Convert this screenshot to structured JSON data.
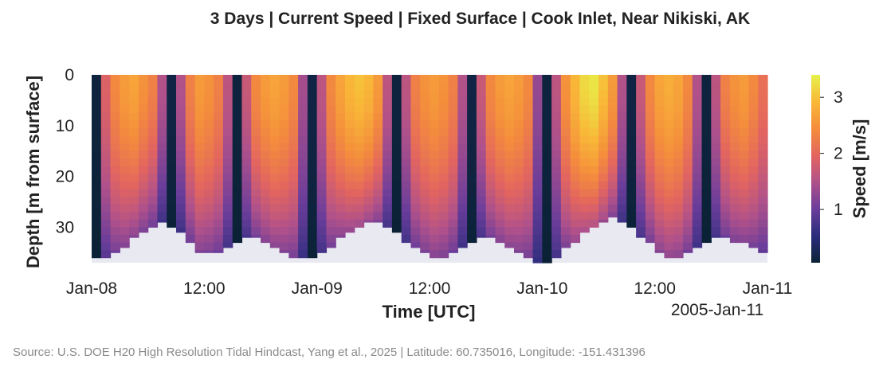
{
  "title": "3 Days | Current Speed | Fixed Surface | Cook Inlet, Near Nikiski, AK",
  "source": "Source: U.S. DOE H20 High Resolution Tidal Hindcast, Yang et al., 2025  |  Latitude: 60.735016, Longitude: -151.431396",
  "colors": {
    "background_area": "#e9e9f2",
    "colormap": [
      "#0b2236",
      "#2a2d7c",
      "#6a3d9a",
      "#b0518a",
      "#e3655f",
      "#f48d3c",
      "#f9b838",
      "#e6f24a"
    ]
  },
  "chart_data": {
    "type": "heatmap",
    "title": "3 Days | Current Speed | Fixed Surface | Cook Inlet, Near Nikiski, AK",
    "xlabel": "Time [UTC]",
    "ylabel": "Depth [m from surface]",
    "colorbar_label": "Speed [m/s]",
    "x_ticks": [
      "Jan-08",
      "12:00",
      "Jan-09",
      "12:00",
      "Jan-10",
      "12:00",
      "Jan-11"
    ],
    "x_offset_label": "2005-Jan-11",
    "y_ticks": [
      "0",
      "10",
      "20",
      "30"
    ],
    "y_tick_values": [
      0,
      10,
      20,
      30
    ],
    "ylim": [
      0,
      37
    ],
    "y_inverted": true,
    "colorbar_ticks": [
      "1",
      "2",
      "3"
    ],
    "colorbar_tick_values": [
      1,
      2,
      3
    ],
    "colorbar_range": [
      0.05,
      3.4
    ],
    "time_hours": [
      0,
      1,
      2,
      3,
      4,
      5,
      6,
      7,
      8,
      9,
      10,
      11,
      12,
      13,
      14,
      15,
      16,
      17,
      18,
      19,
      20,
      21,
      22,
      23,
      24,
      25,
      26,
      27,
      28,
      29,
      30,
      31,
      32,
      33,
      34,
      35,
      36,
      37,
      38,
      39,
      40,
      41,
      42,
      43,
      44,
      45,
      46,
      47,
      48,
      49,
      50,
      51,
      52,
      53,
      54,
      55,
      56,
      57,
      58,
      59,
      60,
      61,
      62,
      63,
      64,
      65,
      66,
      67,
      68,
      69,
      70,
      71
    ],
    "surface_speed_m_s": [
      0.1,
      1.9,
      2.4,
      2.6,
      2.7,
      2.5,
      2.3,
      1.5,
      0.15,
      1.5,
      2.3,
      2.6,
      2.5,
      2.3,
      1.6,
      0.1,
      1.7,
      2.4,
      2.6,
      2.7,
      2.6,
      2.4,
      1.4,
      0.15,
      1.6,
      2.4,
      2.7,
      2.9,
      3.0,
      2.9,
      2.6,
      1.6,
      0.1,
      1.6,
      2.3,
      2.5,
      2.6,
      2.5,
      2.3,
      1.5,
      0.15,
      1.7,
      2.4,
      2.6,
      2.7,
      2.6,
      2.4,
      1.3,
      0.1,
      1.6,
      2.5,
      2.9,
      3.2,
      3.3,
      3.0,
      2.6,
      1.5,
      0.15,
      1.7,
      2.4,
      2.7,
      2.8,
      2.7,
      2.4,
      1.5,
      0.1,
      1.6,
      2.3,
      2.5,
      2.6,
      2.4,
      2.1
    ],
    "bottom_depth_m": [
      36,
      36,
      35,
      34,
      32,
      31,
      30,
      29,
      30,
      31,
      33,
      35,
      35,
      35,
      34,
      33,
      32,
      32,
      33,
      34,
      35,
      36,
      36,
      36,
      35,
      34,
      32,
      31,
      30,
      29,
      29,
      30,
      31,
      33,
      34,
      35,
      36,
      36,
      35,
      34,
      33,
      32,
      32,
      33,
      34,
      35,
      36,
      37,
      37,
      36,
      34,
      33,
      31,
      30,
      29,
      28,
      29,
      30,
      32,
      33,
      35,
      36,
      36,
      35,
      34,
      33,
      32,
      32,
      33,
      33,
      34,
      35
    ]
  }
}
